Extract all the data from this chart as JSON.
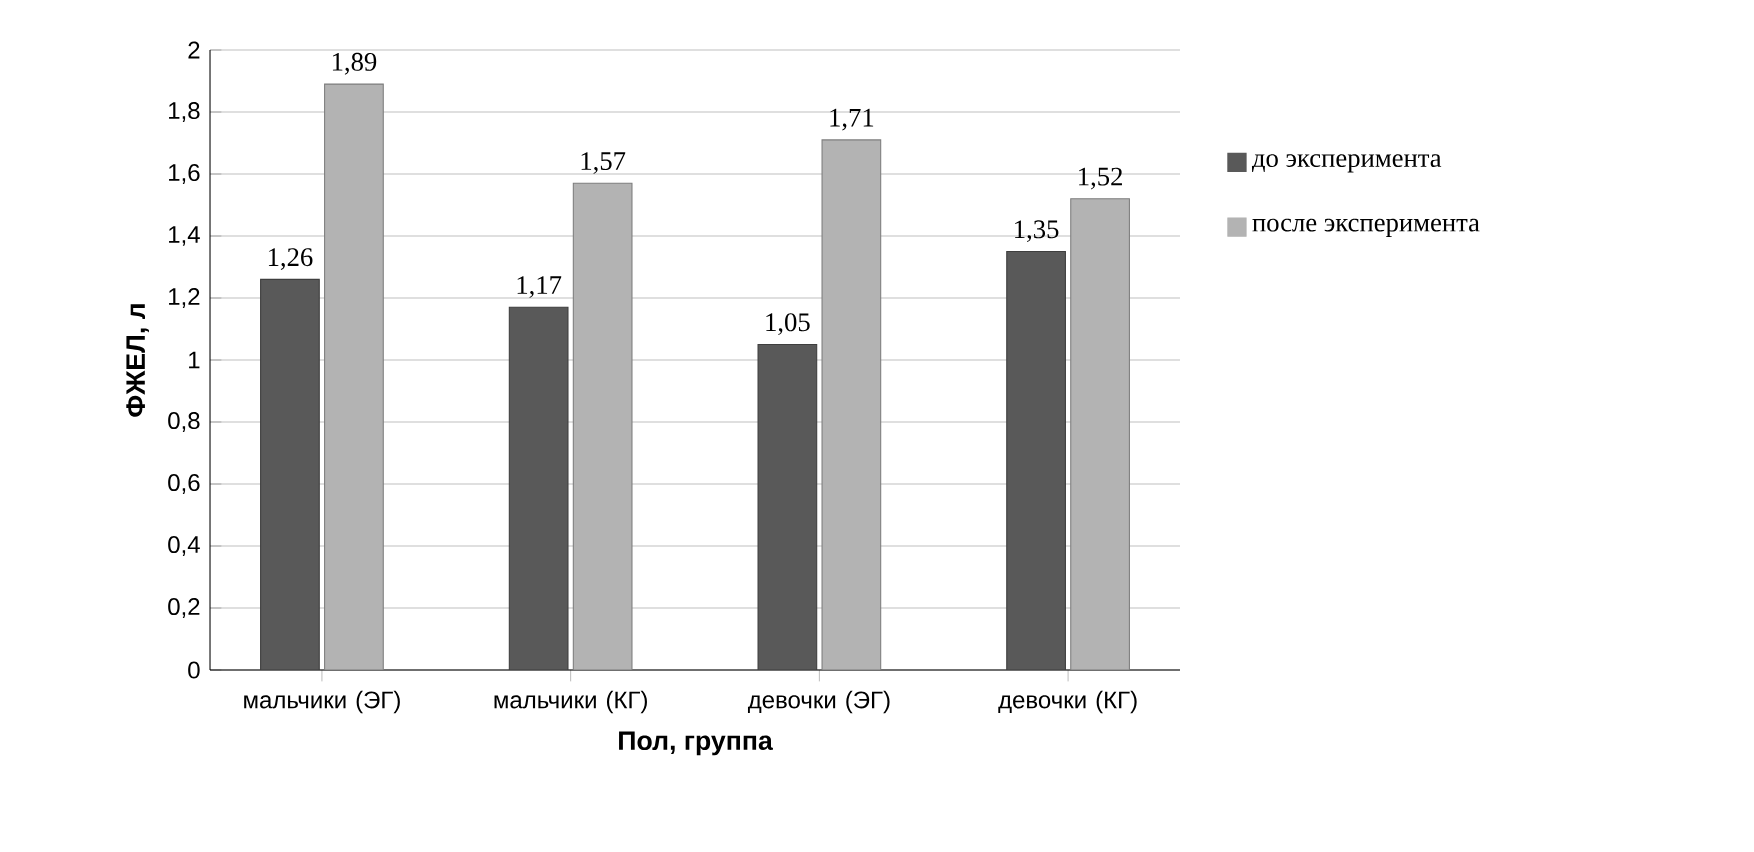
{
  "chart_data": {
    "type": "bar",
    "xlabel": "Пол, группа",
    "ylabel": "ФЖЕЛ, л",
    "categories": [
      "мальчики (ЭГ)",
      "мальчики (КГ)",
      "девочки (ЭГ)",
      "девочки (КГ)"
    ],
    "series": [
      {
        "name": "до эксперимента",
        "color": "#595959",
        "values": [
          1.26,
          1.17,
          1.05,
          1.35
        ],
        "value_labels": [
          "1,26",
          "1,17",
          "1,05",
          "1,35"
        ]
      },
      {
        "name": "после эксперимента",
        "color": "#b3b3b3",
        "values": [
          1.89,
          1.57,
          1.71,
          1.52
        ],
        "value_labels": [
          "1,89",
          "1,57",
          "1,71",
          "1,52"
        ]
      }
    ],
    "ylim": [
      0,
      2
    ],
    "yticks": [
      0,
      {
        "value": 0.2,
        "label": "0,2"
      },
      {
        "value": 0.4,
        "label": "0,4"
      },
      {
        "value": 0.6,
        "label": "0,6"
      },
      {
        "value": 0.8,
        "label": "0,8"
      },
      1,
      {
        "value": 1.2,
        "label": "1,2"
      },
      {
        "value": 1.4,
        "label": "1,4"
      },
      {
        "value": 1.6,
        "label": "1,6"
      },
      {
        "value": 1.8,
        "label": "1,8"
      },
      2
    ],
    "grid": "y",
    "legend": "right"
  }
}
